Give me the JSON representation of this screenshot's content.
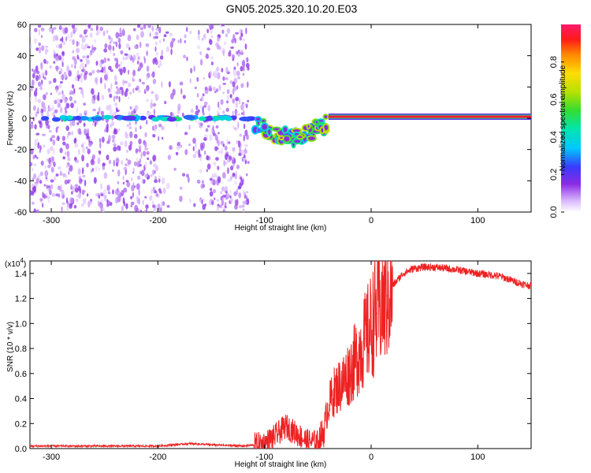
{
  "chart_data": [
    {
      "type": "heatmap",
      "title": "GN05.2025.320.10.20.E03",
      "xlabel": "Height of straight line (km)",
      "ylabel": "Frequency (Hz)",
      "xlim": [
        -320,
        150
      ],
      "ylim": [
        -60,
        60
      ],
      "x_ticks": [
        -300,
        -200,
        -100,
        0,
        100
      ],
      "x_tick_labels": [
        "-300",
        "-200",
        "-100",
        "0",
        "100"
      ],
      "y_ticks": [
        -60,
        -40,
        -20,
        0,
        20,
        40,
        60
      ],
      "y_tick_labels": [
        "-60",
        "-40",
        "-20",
        "0",
        "20",
        "40",
        "60"
      ],
      "colorbar": {
        "label": "Normalized spectral amplitude",
        "range": [
          0,
          1
        ],
        "ticks": [
          0.0,
          0.2,
          0.4,
          0.6,
          0.8
        ],
        "tick_labels": [
          "0.0",
          "0.2",
          "0.4",
          "0.6",
          "0.8"
        ],
        "colormap": "rainbow (white-purple-blue-cyan-green-yellow-orange-red-magenta)"
      },
      "features": [
        {
          "name": "scattered low-amplitude noise",
          "x_range": [
            -320,
            -115
          ],
          "y_range": [
            -60,
            60
          ],
          "amplitude": 0.1
        },
        {
          "name": "central tone band",
          "x_range": [
            -310,
            -110
          ],
          "frequency": 0,
          "amplitude": 0.3
        },
        {
          "name": "frequency excursion",
          "x_range": [
            -110,
            -40
          ],
          "frequency_range": [
            -14,
            6
          ],
          "amplitude": 0.5
        },
        {
          "name": "strong carrier line",
          "x_range": [
            -40,
            150
          ],
          "frequency": 1,
          "amplitude": 0.95
        }
      ]
    },
    {
      "type": "line",
      "title": "",
      "xlabel": "Height of straight line (km)",
      "ylabel": "SNR (10 * v/v)",
      "y_multiplier_label": "(x10",
      "y_multiplier_exp": "4",
      "y_multiplier_close": ")",
      "xlim": [
        -320,
        150
      ],
      "ylim": [
        0,
        1.5
      ],
      "x_ticks": [
        -300,
        -200,
        -100,
        0,
        100
      ],
      "x_tick_labels": [
        "-300",
        "-200",
        "-100",
        "0",
        "100"
      ],
      "y_ticks": [
        0.0,
        0.2,
        0.4,
        0.6,
        0.8,
        1.0,
        1.2,
        1.4
      ],
      "y_tick_labels": [
        "0.0",
        "0.2",
        "0.4",
        "0.6",
        "0.8",
        "1.0",
        "1.2",
        "1.4"
      ],
      "series": [
        {
          "name": "SNR",
          "color": "#ee2222",
          "x": [
            -320,
            -250,
            -200,
            -170,
            -150,
            -120,
            -100,
            -90,
            -80,
            -70,
            -60,
            -50,
            -45,
            -40,
            -35,
            -30,
            -25,
            -20,
            -15,
            -10,
            -5,
            0,
            5,
            10,
            15,
            20,
            30,
            40,
            50,
            60,
            80,
            100,
            120,
            130,
            140,
            150
          ],
          "y": [
            0.02,
            0.02,
            0.02,
            0.04,
            0.03,
            0.02,
            0.04,
            0.1,
            0.18,
            0.12,
            0.06,
            0.05,
            0.12,
            0.35,
            0.45,
            0.5,
            0.55,
            0.62,
            0.7,
            0.8,
            0.88,
            0.98,
            1.08,
            1.15,
            1.22,
            1.3,
            1.4,
            1.44,
            1.45,
            1.45,
            1.43,
            1.4,
            1.38,
            1.35,
            1.32,
            1.3
          ]
        }
      ]
    }
  ],
  "colors": {
    "axis": "#000000",
    "line": "#ee2222",
    "background": "#ffffff"
  }
}
